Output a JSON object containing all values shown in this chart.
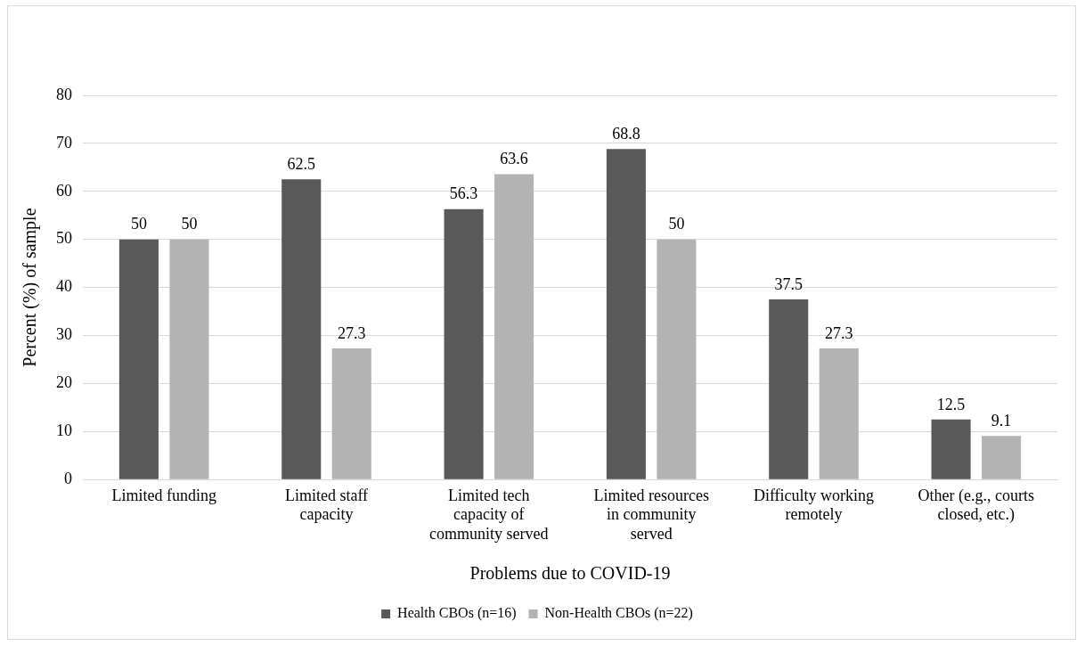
{
  "chart_data": {
    "type": "bar",
    "xlabel": "Problems due to COVID-19",
    "ylabel": "Percent (%) of sample",
    "categories": [
      "Limited funding",
      "Limited staff capacity",
      "Limited tech capacity of community served",
      "Limited resources in community served",
      "Difficulty working remotely",
      "Other (e.g., courts closed, etc.)"
    ],
    "series": [
      {
        "name": "Health CBOs (n=16)",
        "color": "#595959",
        "values": [
          50,
          62.5,
          56.3,
          68.8,
          37.5,
          12.5
        ]
      },
      {
        "name": "Non-Health CBOs (n=22)",
        "color": "#b3b3b3",
        "values": [
          50,
          27.3,
          63.6,
          50,
          27.3,
          9.1
        ]
      }
    ],
    "ylim": [
      0,
      80
    ],
    "yticks": [
      0,
      10,
      20,
      30,
      40,
      50,
      60,
      70,
      80
    ],
    "grid": "y",
    "legend": "bottom",
    "data_labels": true
  }
}
